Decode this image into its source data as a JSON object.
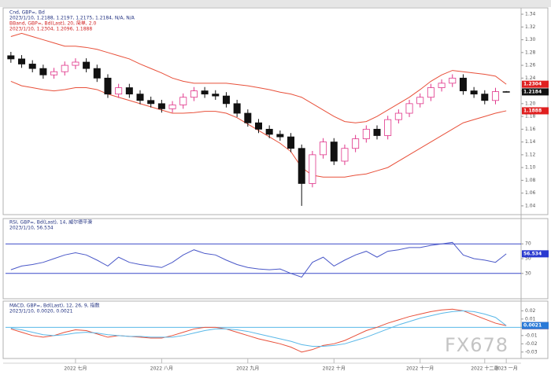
{
  "watermark": "FX678",
  "chart_data": [
    {
      "type": "candlestick",
      "title": "Cnd, GBP=, Bd",
      "subtitle": "2023/1/10, 1.2188, 1.2197, 1.2175, 1.2184, N/A, N/A",
      "overlay_title": "BBand, GBP=, Bd(Last), 20, 简单, 2.0",
      "overlay_subtitle": "2023/1/10, 1.2304, 1.2096, 1.1888",
      "categories": [
        null,
        null,
        null,
        null,
        null,
        null,
        "2022 七月",
        null,
        null,
        null,
        null,
        null,
        null,
        null,
        "2022 八月",
        null,
        null,
        null,
        null,
        null,
        null,
        null,
        "2022 九月",
        null,
        null,
        null,
        null,
        null,
        null,
        null,
        "2022 十月",
        null,
        null,
        null,
        null,
        null,
        null,
        null,
        "2022 十一月",
        null,
        null,
        null,
        null,
        null,
        "2022 十二月",
        null,
        "2023 一月"
      ],
      "open": [
        1.275,
        1.27,
        1.262,
        1.255,
        1.245,
        1.25,
        1.26,
        1.265,
        1.255,
        1.24,
        1.215,
        1.225,
        1.215,
        1.205,
        1.2,
        1.192,
        1.198,
        1.21,
        1.22,
        1.215,
        1.212,
        1.2,
        1.185,
        1.17,
        1.16,
        1.152,
        1.148,
        1.13,
        1.075,
        1.12,
        1.14,
        1.11,
        1.13,
        1.145,
        1.16,
        1.15,
        1.175,
        1.185,
        1.2,
        1.21,
        1.225,
        1.232,
        1.24,
        1.22,
        1.215,
        1.205,
        1.2188
      ],
      "high": [
        1.281,
        1.276,
        1.268,
        1.261,
        1.256,
        1.266,
        1.271,
        1.271,
        1.261,
        1.246,
        1.231,
        1.231,
        1.221,
        1.211,
        1.206,
        1.204,
        1.216,
        1.226,
        1.226,
        1.221,
        1.218,
        1.206,
        1.191,
        1.176,
        1.166,
        1.158,
        1.154,
        1.136,
        1.126,
        1.146,
        1.146,
        1.136,
        1.151,
        1.166,
        1.166,
        1.181,
        1.191,
        1.206,
        1.216,
        1.231,
        1.238,
        1.246,
        1.246,
        1.226,
        1.221,
        1.2248,
        1.2197
      ],
      "low": [
        1.264,
        1.256,
        1.249,
        1.239,
        1.239,
        1.244,
        1.254,
        1.249,
        1.234,
        1.209,
        1.209,
        1.209,
        1.199,
        1.194,
        1.186,
        1.186,
        1.192,
        1.204,
        1.209,
        1.206,
        1.194,
        1.179,
        1.164,
        1.154,
        1.146,
        1.142,
        1.124,
        1.04,
        1.069,
        1.114,
        1.104,
        1.104,
        1.124,
        1.139,
        1.144,
        1.144,
        1.169,
        1.179,
        1.194,
        1.204,
        1.219,
        1.226,
        1.214,
        1.209,
        1.199,
        1.199,
        1.2175
      ],
      "close": [
        1.27,
        1.262,
        1.255,
        1.245,
        1.25,
        1.26,
        1.265,
        1.255,
        1.24,
        1.215,
        1.225,
        1.215,
        1.205,
        1.2,
        1.192,
        1.198,
        1.21,
        1.22,
        1.215,
        1.212,
        1.2,
        1.185,
        1.17,
        1.16,
        1.152,
        1.148,
        1.13,
        1.075,
        1.12,
        1.14,
        1.11,
        1.13,
        1.145,
        1.16,
        1.15,
        1.175,
        1.185,
        1.2,
        1.21,
        1.225,
        1.232,
        1.24,
        1.22,
        1.215,
        1.205,
        1.2188,
        1.2184
      ],
      "up_color": "#e0358a",
      "down_color": "#111111",
      "tag_color": "#111111",
      "series": [
        {
          "color": "#e8503a",
          "tag_color": "#e02020",
          "values": [
            1.305,
            1.31,
            1.305,
            1.3,
            1.295,
            1.29,
            1.29,
            1.288,
            1.285,
            1.28,
            1.275,
            1.27,
            1.262,
            1.255,
            1.248,
            1.24,
            1.235,
            1.232,
            1.232,
            1.232,
            1.232,
            1.23,
            1.228,
            1.225,
            1.222,
            1.218,
            1.215,
            1.21,
            1.2,
            1.19,
            1.18,
            1.172,
            1.17,
            1.172,
            1.18,
            1.19,
            1.2,
            1.21,
            1.222,
            1.235,
            1.245,
            1.252,
            1.25,
            1.248,
            1.246,
            1.243,
            1.2304
          ]
        },
        {
          "color": "#e8503a",
          "tag_color": "#e02020",
          "values": [
            1.235,
            1.228,
            1.225,
            1.222,
            1.22,
            1.222,
            1.225,
            1.225,
            1.222,
            1.215,
            1.21,
            1.205,
            1.2,
            1.195,
            1.19,
            1.185,
            1.185,
            1.186,
            1.188,
            1.188,
            1.185,
            1.178,
            1.168,
            1.158,
            1.148,
            1.138,
            1.125,
            1.1,
            1.088,
            1.085,
            1.085,
            1.085,
            1.088,
            1.09,
            1.095,
            1.1,
            1.11,
            1.12,
            1.13,
            1.14,
            1.15,
            1.16,
            1.17,
            1.175,
            1.18,
            1.185,
            1.1888
          ]
        }
      ],
      "ylim": [
        1.03,
        1.345
      ],
      "yticks": [
        {
          "value": 1.04,
          "label": "1.04"
        },
        {
          "value": 1.06,
          "label": "1.06"
        },
        {
          "value": 1.08,
          "label": "1.08"
        },
        {
          "value": 1.1,
          "label": "1.10"
        },
        {
          "value": 1.12,
          "label": "1.12"
        },
        {
          "value": 1.14,
          "label": "1.14"
        },
        {
          "value": 1.16,
          "label": "1.16"
        },
        {
          "value": 1.18,
          "label": "1.18"
        },
        {
          "value": 1.2,
          "label": "1.20"
        },
        {
          "value": 1.22,
          "label": "1.22"
        },
        {
          "value": 1.24,
          "label": "1.24"
        },
        {
          "value": 1.26,
          "label": "1.26"
        },
        {
          "value": 1.28,
          "label": "1.28"
        },
        {
          "value": 1.3,
          "label": "1.30"
        },
        {
          "value": 1.32,
          "label": "1.32"
        },
        {
          "value": 1.34,
          "label": "1.34"
        }
      ]
    },
    {
      "type": "line",
      "title": "RSI, GBP=, Bd(Last), 14, 威尔德平滑",
      "subtitle": "2023/1/10, 56.534",
      "series": [
        {
          "color": "#4a58c8",
          "tag_color": "#2a3ad0",
          "values": [
            35,
            40,
            42,
            45,
            50,
            55,
            58,
            55,
            48,
            40,
            52,
            45,
            42,
            40,
            38,
            45,
            55,
            62,
            57,
            55,
            48,
            42,
            38,
            36,
            35,
            36,
            30,
            25,
            45,
            52,
            40,
            48,
            55,
            60,
            52,
            60,
            62,
            65,
            65,
            68,
            70,
            72,
            55,
            50,
            48,
            45,
            56.534
          ]
        }
      ],
      "levels": [
        70,
        30
      ],
      "level_color": "#3a48c8",
      "ylim": [
        0,
        100
      ],
      "yticks": [
        70,
        50,
        30
      ]
    },
    {
      "type": "line",
      "title": "MACD, GBP=, Bd(Last), 12, 26, 9, 指数",
      "subtitle": "2023/1/10, 0.0020, 0.0021",
      "series": [
        {
          "color": "#e8503a",
          "tag_color": "#e02020",
          "values": [
            -0.002,
            -0.006,
            -0.01,
            -0.012,
            -0.01,
            -0.006,
            -0.003,
            -0.004,
            -0.008,
            -0.012,
            -0.01,
            -0.011,
            -0.012,
            -0.013,
            -0.013,
            -0.01,
            -0.006,
            -0.002,
            0,
            0,
            -0.002,
            -0.006,
            -0.01,
            -0.014,
            -0.017,
            -0.02,
            -0.024,
            -0.03,
            -0.027,
            -0.022,
            -0.02,
            -0.016,
            -0.01,
            -0.004,
            0,
            0.005,
            0.009,
            0.013,
            0.016,
            0.019,
            0.021,
            0.022,
            0.02,
            0.015,
            0.01,
            0.005,
            0.002
          ],
          "value_labels": [
            null,
            null,
            null,
            null,
            null,
            null,
            null,
            null,
            null,
            null,
            null,
            null,
            null,
            null,
            null,
            null,
            null,
            null,
            null,
            null,
            null,
            null,
            null,
            null,
            null,
            null,
            null,
            null,
            null,
            null,
            null,
            null,
            null,
            null,
            null,
            null,
            null,
            null,
            null,
            null,
            null,
            null,
            null,
            null,
            null,
            null,
            "0.0020"
          ]
        },
        {
          "color": "#5ab8e8",
          "tag_color": "#2a7ad8",
          "values": [
            -0.001,
            -0.003,
            -0.006,
            -0.009,
            -0.01,
            -0.009,
            -0.007,
            -0.006,
            -0.007,
            -0.009,
            -0.01,
            -0.011,
            -0.011,
            -0.012,
            -0.012,
            -0.012,
            -0.01,
            -0.007,
            -0.004,
            -0.002,
            -0.002,
            -0.003,
            -0.005,
            -0.008,
            -0.011,
            -0.014,
            -0.017,
            -0.021,
            -0.023,
            -0.023,
            -0.022,
            -0.02,
            -0.016,
            -0.012,
            -0.007,
            -0.002,
            0.003,
            0.007,
            0.011,
            0.014,
            0.017,
            0.019,
            0.02,
            0.019,
            0.016,
            0.012,
            0.0021
          ]
        }
      ],
      "levels": [
        0
      ],
      "level_color": "#5ab8e8",
      "ylim": [
        -0.034,
        0.027
      ],
      "yticks": [
        0.02,
        0.01,
        0,
        -0.01,
        -0.02,
        -0.03
      ]
    }
  ]
}
